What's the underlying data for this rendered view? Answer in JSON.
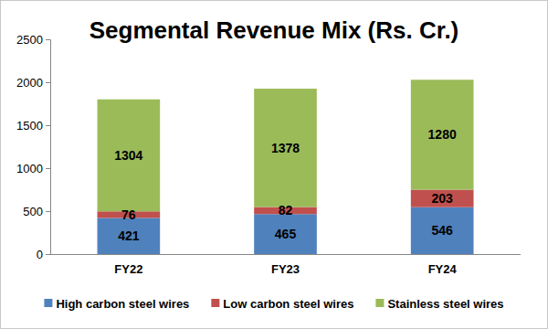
{
  "chart_data": {
    "type": "bar",
    "title": "Segmental Revenue Mix (Rs. Cr.)",
    "categories": [
      "FY22",
      "FY23",
      "FY24"
    ],
    "series": [
      {
        "name": "High carbon steel wires",
        "color": "#4f81bd",
        "values": [
          421,
          465,
          546
        ]
      },
      {
        "name": "Low carbon steel wires",
        "color": "#c0504d",
        "values": [
          76,
          82,
          203
        ]
      },
      {
        "name": "Stainless steel wires",
        "color": "#9bbb59",
        "values": [
          1304,
          1378,
          1280
        ]
      }
    ],
    "ylim": [
      0,
      2500
    ],
    "yticks": [
      0,
      500,
      1000,
      1500,
      2000,
      2500
    ],
    "stacked": true,
    "data_labels": true,
    "grid": false,
    "legend": "bottom"
  }
}
